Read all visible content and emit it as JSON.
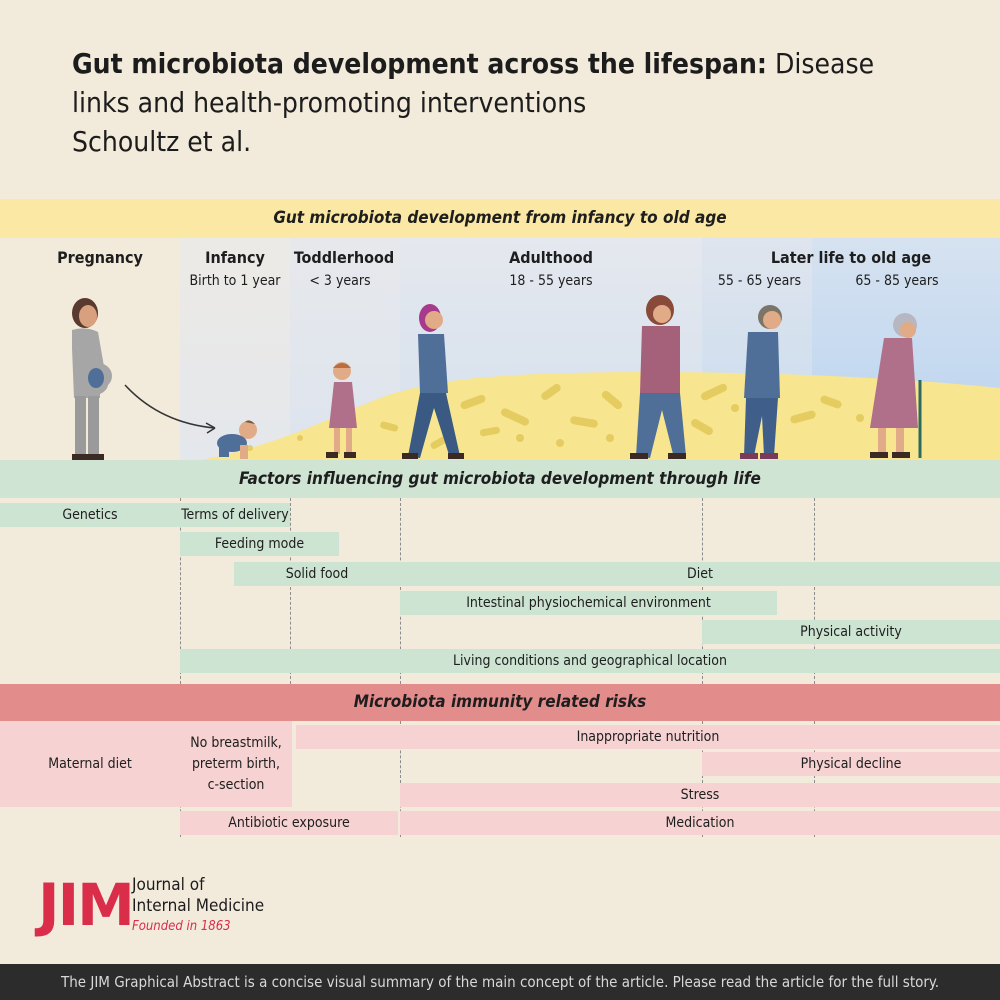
{
  "header": {
    "title_bold": "Gut microbiota development across the lifespan:",
    "title_rest": " Disease links and health-promoting interventions",
    "authors": "Schoultz et al."
  },
  "development_band": {
    "label": "Gut microbiota development from infancy to old age"
  },
  "stages": [
    {
      "title": "Pregnancy",
      "sub": ""
    },
    {
      "title": "Infancy",
      "sub": "Birth to 1 year"
    },
    {
      "title": "Toddlerhood",
      "sub": "< 3 years"
    },
    {
      "title": "Adulthood",
      "sub": "18 - 55 years"
    },
    {
      "title": "Later life to old age",
      "sub": ""
    }
  ],
  "later_life_subs": [
    "55 - 65  years",
    "65 - 85 years"
  ],
  "factors_band": {
    "label": "Factors influencing gut microbiota development through life"
  },
  "factors": [
    "Genetics",
    "Terms of delivery",
    "Feeding mode",
    "Solid food",
    "Diet",
    "Intestinal physiochemical environment",
    "Physical activity",
    "Living conditions and geographical location"
  ],
  "risks_band": {
    "label": "Microbiota immunity related risks"
  },
  "risks": [
    "Maternal diet",
    "No breastmilk,",
    "preterm birth,",
    "c-section",
    "Inappropriate nutrition",
    "Physical decline",
    "Stress",
    "Antibiotic exposure",
    "Medication"
  ],
  "logo": {
    "mark": "JIM",
    "line1": "Journal of",
    "line2": "Internal Medicine",
    "founded": "Founded in 1863"
  },
  "footer": {
    "text": "The JIM Graphical Abstract is a concise visual summary of the main concept of the article. Please read the article for the full story."
  },
  "colors": {
    "background": "#f2ebdc",
    "yellow_band": "#fae8a4",
    "green_band": "#cfe4d3",
    "red_band": "#e28c8b",
    "pink_bar": "#f6d2d2",
    "brand_red": "#d92d4a"
  }
}
